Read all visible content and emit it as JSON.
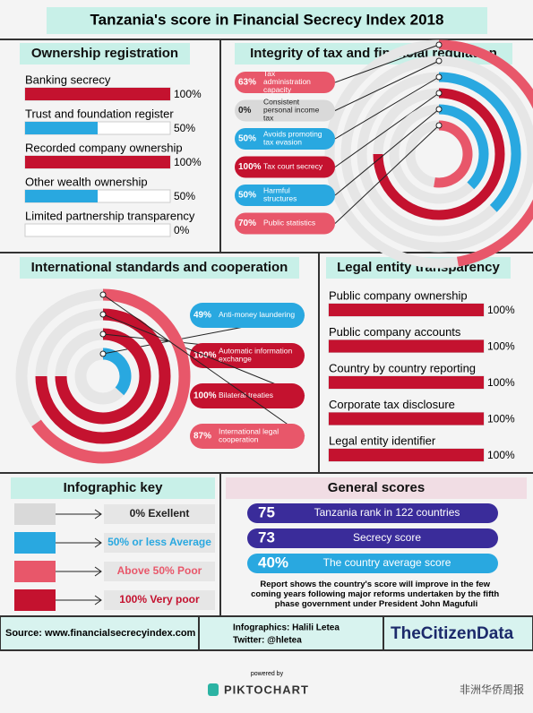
{
  "title": "Tanzania's score in Financial Secrecy Index 2018",
  "ownership": {
    "title": "Ownership registration",
    "items": [
      {
        "label": "Banking secrecy",
        "value": 100,
        "value_label": "100%",
        "color": "#c4122f"
      },
      {
        "label": "Trust and foundation register",
        "value": 50,
        "value_label": "50%",
        "color": "#29a8e0"
      },
      {
        "label": "Recorded company ownership",
        "value": 100,
        "value_label": "100%",
        "color": "#c4122f"
      },
      {
        "label": "Other wealth ownership",
        "value": 50,
        "value_label": "50%",
        "color": "#29a8e0"
      },
      {
        "label": "Limited partnership transparency",
        "value": 0,
        "value_label": "0%",
        "color": "#d9d9d9"
      }
    ]
  },
  "integrity": {
    "title": "Integrity of tax and financial regulation",
    "items": [
      {
        "label": "Tax administration capacity",
        "value": 63,
        "value_label": "63%",
        "color": "#e8576a"
      },
      {
        "label": "Consistent personal income tax",
        "value": 0,
        "value_label": "0%",
        "color": "#d9d9d9"
      },
      {
        "label": "Avoids promoting tax evasion",
        "value": 50,
        "value_label": "50%",
        "color": "#29a8e0"
      },
      {
        "label": "Tax court secrecy",
        "value": 100,
        "value_label": "100%",
        "color": "#c4122f"
      },
      {
        "label": "Harmful structures",
        "value": 50,
        "value_label": "50%",
        "color": "#29a8e0"
      },
      {
        "label": "Public statistics",
        "value": 70,
        "value_label": "70%",
        "color": "#e8576a"
      }
    ]
  },
  "international": {
    "title": "International standards and cooperation",
    "items": [
      {
        "label": "Anti-money laundering",
        "value": 49,
        "value_label": "49%",
        "color": "#29a8e0"
      },
      {
        "label": "Automatic information exchange",
        "value": 100,
        "value_label": "100%",
        "color": "#c4122f"
      },
      {
        "label": "Bilateral treaties",
        "value": 100,
        "value_label": "100%",
        "color": "#c4122f"
      },
      {
        "label": "International legal cooperation",
        "value": 87,
        "value_label": "87%",
        "color": "#e8576a"
      }
    ]
  },
  "legal": {
    "title": "Legal entity transparency",
    "items": [
      {
        "label": "Public company ownership",
        "value": 100,
        "value_label": "100%",
        "color": "#c4122f"
      },
      {
        "label": "Public company accounts",
        "value": 100,
        "value_label": "100%",
        "color": "#c4122f"
      },
      {
        "label": "Country by country reporting",
        "value": 100,
        "value_label": "100%",
        "color": "#c4122f"
      },
      {
        "label": "Corporate tax disclosure",
        "value": 100,
        "value_label": "100%",
        "color": "#c4122f"
      },
      {
        "label": "Legal entity identifier",
        "value": 100,
        "value_label": "100%",
        "color": "#c4122f"
      }
    ]
  },
  "key": {
    "title": "Infographic key",
    "items": [
      {
        "label": "0%  Exellent",
        "color": "#d9d9d9"
      },
      {
        "label": "50% or less  Average",
        "color": "#29a8e0"
      },
      {
        "label": "Above 50% Poor",
        "color": "#e8576a"
      },
      {
        "label": "100% Very poor",
        "color": "#c4122f"
      }
    ]
  },
  "general": {
    "title": "General scores",
    "items": [
      {
        "value": 75,
        "label": "Tanzania rank in 122 countries"
      },
      {
        "value": 73,
        "label": "Secrecy score"
      },
      {
        "value": 40,
        "value_label": "40%",
        "label": "The country average score"
      }
    ],
    "note": "Report shows the country's score will improve in the few coming years following major reforms undertaken by the fifth phase government under President John Magufuli"
  },
  "footer": {
    "source": "Source: www.financialsecrecyindex.com",
    "credit": "Infographics: Halili Letea",
    "twitter": "Twitter: @hletea",
    "brand": "TheCitizenData",
    "powered": "powered by",
    "piktochart": "PIKTOCHART",
    "watermark": "非洲华侨周报"
  }
}
